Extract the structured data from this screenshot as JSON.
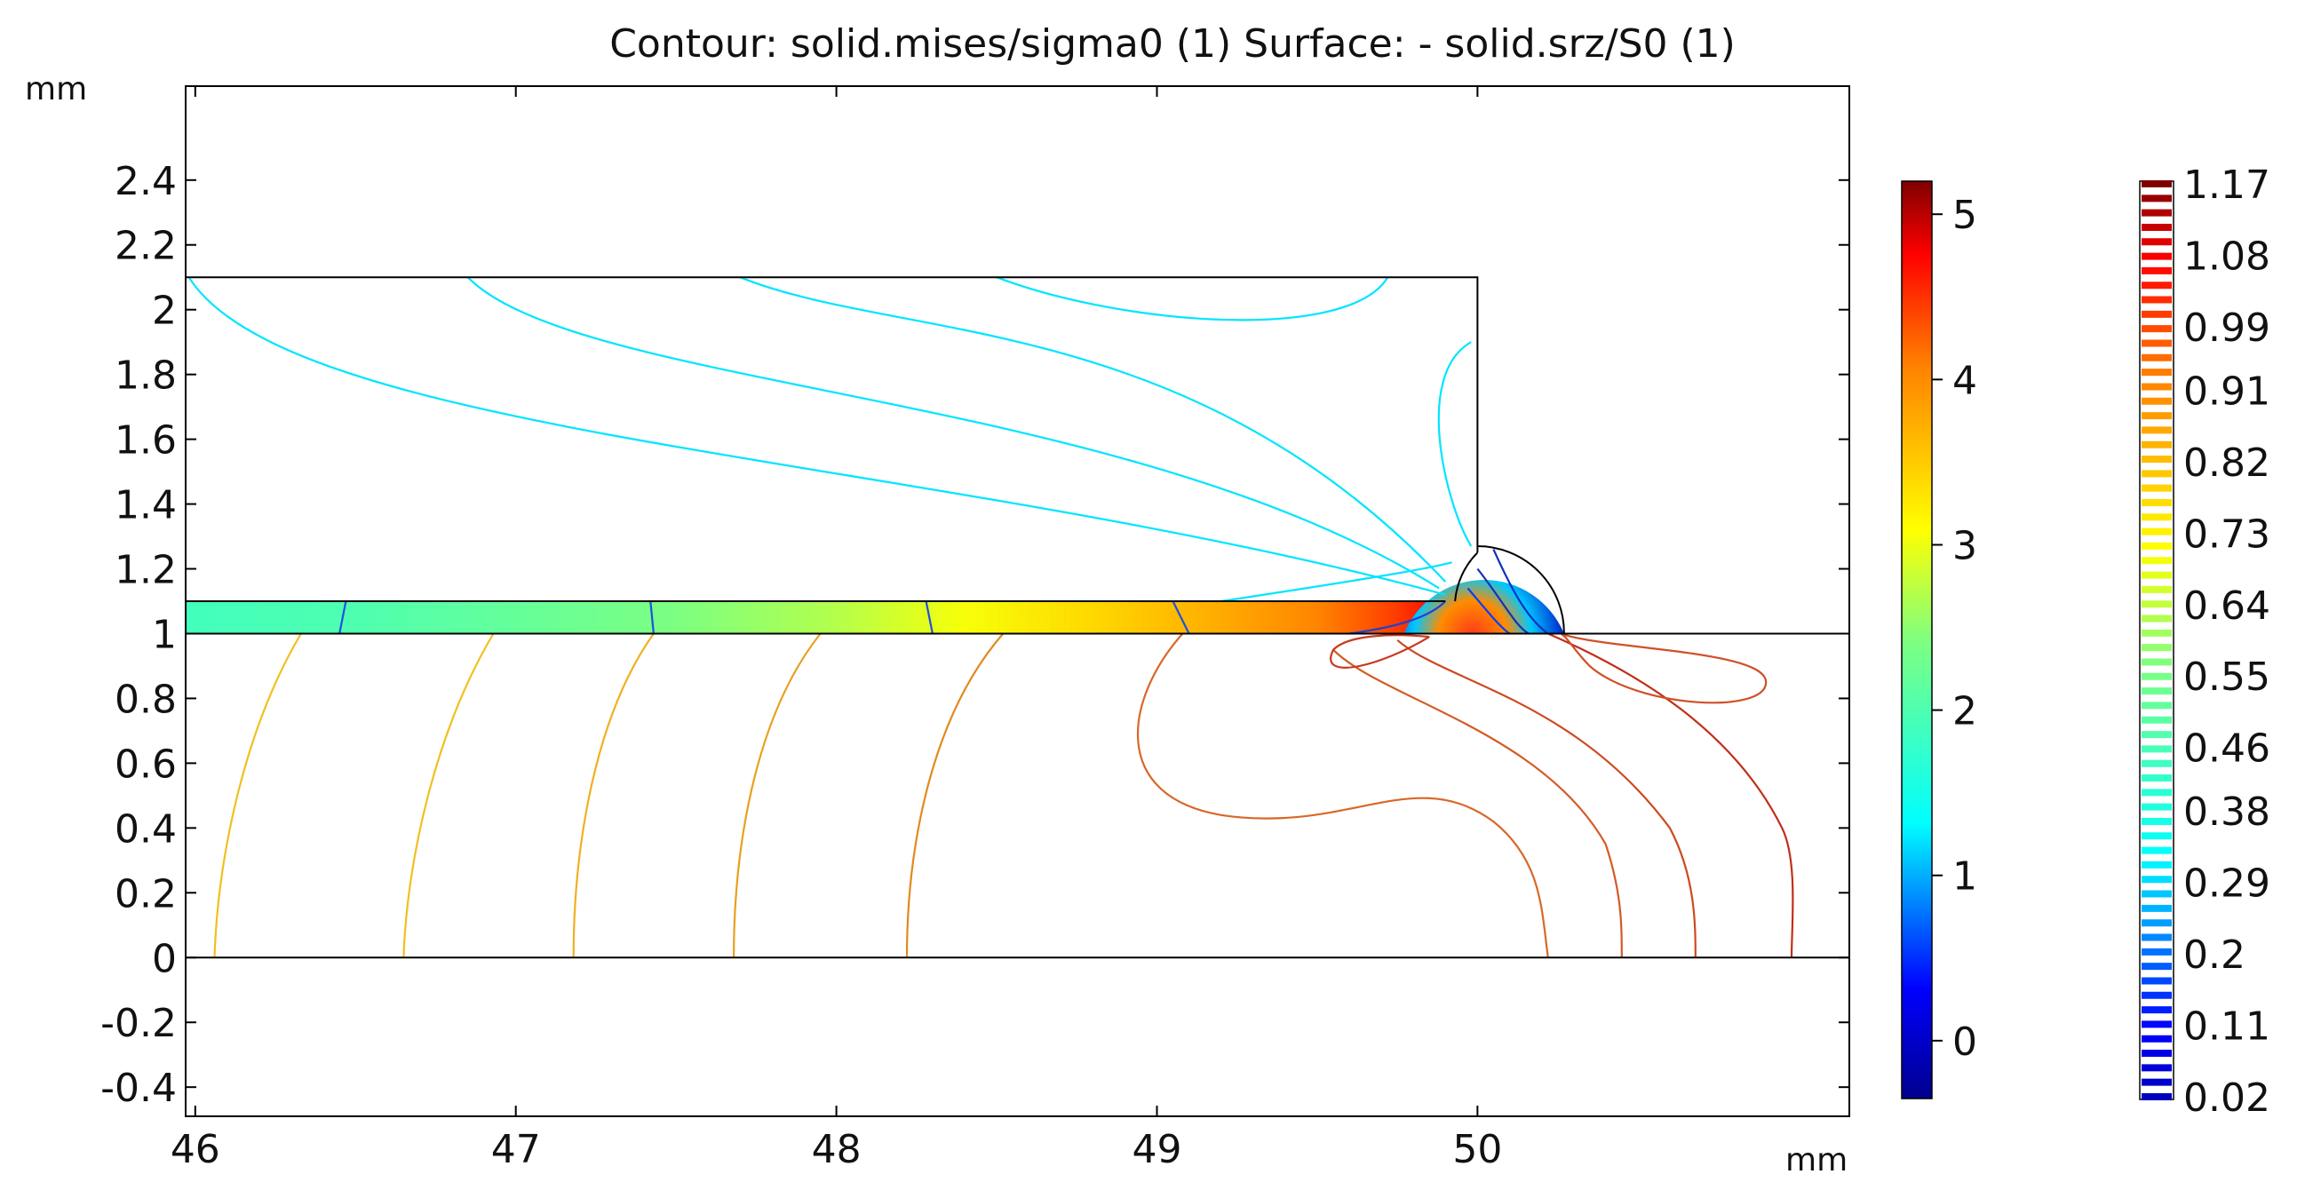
{
  "chart_data": {
    "type": "contour",
    "title": "Contour: solid.mises/sigma0 (1)  Surface: - solid.srz/S0 (1)",
    "x_unit": "mm",
    "y_unit": "mm",
    "xlim": [
      45.97,
      51.16
    ],
    "ylim": [
      -0.49,
      2.69
    ],
    "x_ticks": [
      "46",
      "47",
      "48",
      "49",
      "50"
    ],
    "y_ticks": [
      "-0.4",
      "-0.2",
      "0",
      "0.2",
      "0.4",
      "0.6",
      "0.8",
      "1",
      "1.2",
      "1.4",
      "1.6",
      "1.8",
      "2",
      "2.2",
      "2.4"
    ],
    "geometry": {
      "upper_block": {
        "x": [
          45.97,
          50.0
        ],
        "y": [
          1.1,
          2.1
        ]
      },
      "layer_strip": {
        "x": [
          45.97,
          49.9
        ],
        "y": [
          1.0,
          1.1
        ]
      },
      "interface_line_y": 1.0,
      "base_line_y": 0.0,
      "notch_center": [
        50.0,
        1.0
      ],
      "notch_radius": 0.27
    },
    "surface_colorbar": {
      "colormap": "rainbow",
      "range": [
        -0.35,
        5.2
      ],
      "ticks": [
        "0",
        "1",
        "2",
        "3",
        "4",
        "5"
      ]
    },
    "contour_legend": {
      "levels": [
        "0.02",
        "0.11",
        "0.2",
        "0.29",
        "0.38",
        "0.46",
        "0.55",
        "0.64",
        "0.73",
        "0.82",
        "0.91",
        "0.99",
        "1.08",
        "1.17"
      ],
      "range": [
        0.02,
        1.17
      ]
    },
    "surface_strip_samples": [
      {
        "x": 46.0,
        "v": 1.9
      },
      {
        "x": 46.5,
        "v": 2.0
      },
      {
        "x": 47.0,
        "v": 2.2
      },
      {
        "x": 47.5,
        "v": 2.4
      },
      {
        "x": 48.0,
        "v": 2.7
      },
      {
        "x": 48.4,
        "v": 3.05
      },
      {
        "x": 48.8,
        "v": 3.4
      },
      {
        "x": 49.2,
        "v": 3.75
      },
      {
        "x": 49.5,
        "v": 4.05
      },
      {
        "x": 49.75,
        "v": 4.45
      },
      {
        "x": 49.9,
        "v": 4.8
      }
    ]
  },
  "labels": {
    "y_unit_label": "mm",
    "x_unit_label": "mm"
  },
  "colors": {
    "contour_low": "#00e5ff",
    "contour_mid": "#f0c020",
    "contour_high": "#c0301a",
    "frame": "#000000"
  }
}
